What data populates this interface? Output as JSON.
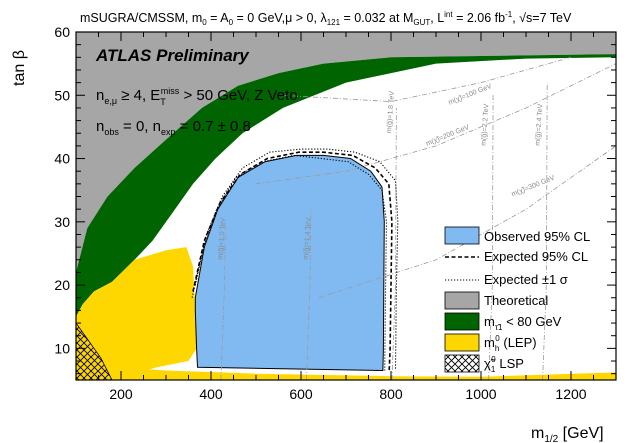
{
  "chart_data": {
    "type": "area",
    "title_parts": {
      "model": "mSUGRA/CMSSM",
      "m0": "m",
      "m0_sub": "0",
      "a0_eq": " = A",
      "a0_sub": "0",
      "params": " = 0 GeV,",
      "mu": "μ > 0,",
      "lambda": "λ",
      "lambda_sub": "121",
      "lambda_val": " = 0.032 at M",
      "gut_sub": "GUT",
      "lumi": ",  L",
      "lumi_sup": "int",
      "lumi_val": " = 2.06 fb",
      "lumi_unit_sup": "-1",
      "sqrt_s": ", √s=7 TeV"
    },
    "badge": "ATLAS Preliminary",
    "selection": {
      "line1_n": "n",
      "line1_sub": "e,μ",
      "line1_cut": " ≥ 4, E",
      "line1_sub2": "T",
      "line1_sup2": "miss",
      "line1_rest": " > 50 GeV, Z Veto",
      "line2_n": "n",
      "line2_sub": "obs",
      "line2_mid": " = 0, n",
      "line2_sub2": "exp",
      "line2_rest": " = 0.7 ± 0.8"
    },
    "xlabel": "m",
    "xlabel_sub": "1/2",
    "xlabel_unit": " [GeV]",
    "ylabel": "tan β",
    "xlim": [
      100,
      1300
    ],
    "ylim": [
      5,
      60
    ],
    "x_ticks": [
      200,
      400,
      600,
      800,
      1000,
      1200
    ],
    "x_tick_labels": [
      "200",
      "400",
      "600",
      "800",
      "1000",
      "1200"
    ],
    "y_ticks": [
      10,
      20,
      30,
      40,
      50,
      60
    ],
    "y_tick_labels": [
      "10",
      "20",
      "30",
      "40",
      "50",
      "60"
    ],
    "regions": {
      "theoretical": [
        [
          100,
          60
        ],
        [
          100,
          22
        ],
        [
          125,
          29
        ],
        [
          170,
          34
        ],
        [
          230,
          38.5
        ],
        [
          300,
          43
        ],
        [
          380,
          48
        ],
        [
          460,
          51.5
        ],
        [
          550,
          53.5
        ],
        [
          650,
          55
        ],
        [
          800,
          56
        ],
        [
          1000,
          56.2
        ],
        [
          1300,
          56.5
        ],
        [
          1300,
          60
        ]
      ],
      "stau": [
        [
          100,
          22
        ],
        [
          125,
          29
        ],
        [
          170,
          34
        ],
        [
          230,
          38.5
        ],
        [
          300,
          43
        ],
        [
          380,
          48
        ],
        [
          460,
          51.5
        ],
        [
          550,
          53.5
        ],
        [
          650,
          55
        ],
        [
          800,
          56
        ],
        [
          1000,
          56.2
        ],
        [
          1300,
          56.5
        ],
        [
          1300,
          56
        ],
        [
          1100,
          55.8
        ],
        [
          900,
          55
        ],
        [
          700,
          52
        ],
        [
          560,
          48
        ],
        [
          470,
          44
        ],
        [
          410,
          40
        ],
        [
          360,
          36
        ],
        [
          320,
          32
        ],
        [
          270,
          27
        ],
        [
          230,
          24
        ],
        [
          180,
          20.5
        ],
        [
          140,
          19
        ],
        [
          115,
          17
        ],
        [
          100,
          15
        ]
      ],
      "lep": [
        [
          100,
          5
        ],
        [
          100,
          15
        ],
        [
          115,
          17
        ],
        [
          140,
          19
        ],
        [
          180,
          20.5
        ],
        [
          230,
          24
        ],
        [
          300,
          25.5
        ],
        [
          345,
          26
        ],
        [
          360,
          23
        ],
        [
          365,
          16
        ],
        [
          368,
          10
        ],
        [
          350,
          8
        ],
        [
          280,
          7
        ],
        [
          200,
          5.5
        ],
        [
          150,
          5
        ]
      ],
      "lep_bottom_band": [
        [
          100,
          5
        ],
        [
          100,
          7.5
        ],
        [
          300,
          6.5
        ],
        [
          500,
          6
        ],
        [
          800,
          5.6
        ],
        [
          1000,
          5.5
        ],
        [
          1300,
          6.2
        ],
        [
          1300,
          5
        ]
      ],
      "lsp": [
        [
          100,
          5
        ],
        [
          100,
          14
        ],
        [
          130,
          11
        ],
        [
          155,
          8.5
        ],
        [
          180,
          5
        ]
      ],
      "observed": [
        [
          365,
          18
        ],
        [
          385,
          26
        ],
        [
          415,
          32
        ],
        [
          460,
          37
        ],
        [
          520,
          39.5
        ],
        [
          590,
          40.5
        ],
        [
          650,
          40.5
        ],
        [
          710,
          40
        ],
        [
          755,
          38
        ],
        [
          780,
          35.5
        ],
        [
          785,
          30
        ],
        [
          784,
          20
        ],
        [
          783,
          10
        ],
        [
          782,
          6.5
        ],
        [
          370,
          7
        ],
        [
          368,
          10
        ],
        [
          365,
          16
        ]
      ]
    },
    "expected": [
      [
        360,
        19
      ],
      [
        385,
        27
      ],
      [
        420,
        33
      ],
      [
        465,
        37.5
      ],
      [
        525,
        40
      ],
      [
        595,
        41
      ],
      [
        650,
        41
      ],
      [
        715,
        40.5
      ],
      [
        765,
        38.5
      ],
      [
        795,
        36
      ],
      [
        802,
        30
      ],
      [
        800,
        20
      ],
      [
        798,
        10
      ],
      [
        796,
        6.5
      ]
    ],
    "expected_plus": [
      [
        365,
        20
      ],
      [
        390,
        28
      ],
      [
        425,
        34
      ],
      [
        470,
        38.5
      ],
      [
        530,
        41
      ],
      [
        600,
        41.5
      ],
      [
        660,
        41.5
      ],
      [
        720,
        41
      ],
      [
        775,
        39.5
      ],
      [
        810,
        36.5
      ],
      [
        815,
        30
      ],
      [
        812,
        20
      ],
      [
        810,
        6.5
      ]
    ],
    "expected_minus": [
      [
        358,
        18
      ],
      [
        383,
        26
      ],
      [
        413,
        32
      ],
      [
        455,
        37
      ],
      [
        515,
        39.5
      ],
      [
        585,
        40.5
      ],
      [
        645,
        40
      ],
      [
        705,
        39.5
      ],
      [
        750,
        37.5
      ],
      [
        780,
        35
      ],
      [
        790,
        30
      ],
      [
        788,
        20
      ],
      [
        786,
        6.5
      ]
    ],
    "mass_contours": {
      "gluino": [
        {
          "label": "m(g̃)=1.0 TeV",
          "x": 430,
          "label_x": 425,
          "label_y": 24
        },
        {
          "label": "m(g̃)=1.4 TeV",
          "x": 620,
          "label_x": 615,
          "label_y": 24
        },
        {
          "label": "m(g̃)=1.8 TeV",
          "x": 810,
          "label_x": 800,
          "label_y": 44
        },
        {
          "label": "m(g̃)=2.2 TeV",
          "x": 1025,
          "label_x": 1010,
          "label_y": 42
        },
        {
          "label": "m(g̃)=2.4 TeV",
          "x": 1145,
          "label_x": 1130,
          "label_y": 42
        }
      ],
      "chargino": [
        {
          "label": "m(χ̃)=100 GeV",
          "label_x": 930,
          "label_y": 48.5
        },
        {
          "label": "m(χ̃)=200 GeV",
          "label_x": 880,
          "label_y": 42
        },
        {
          "label": "m(χ̃)=300 GeV",
          "label_x": 1070,
          "label_y": 34
        }
      ]
    },
    "legend": {
      "placement": "bottom-right",
      "entries": [
        {
          "label": "Observed 95% CL",
          "style": "fill",
          "color": "#80BAF0"
        },
        {
          "label": "Expected 95% CL",
          "style": "dashed"
        },
        {
          "label": "Expected ±1 σ",
          "style": "dotted"
        },
        {
          "label": "Theoretical",
          "style": "fill",
          "color": "#A6A6A6"
        },
        {
          "label_main": "m",
          "label_sub": "τ̃1",
          "label_rest": " < 80 GeV",
          "style": "fill",
          "color": "#006400"
        },
        {
          "label_main": "m",
          "label_sub": "h",
          "label_sup": "0",
          "label_rest": " (LEP)",
          "style": "fill",
          "color": "#FFD700"
        },
        {
          "label_main": "χ̃",
          "label_sub": "1",
          "label_sup": "0",
          "label_rest": " LSP",
          "style": "hatch"
        }
      ]
    },
    "colors": {
      "theoretical": "#A6A6A6",
      "stau": "#006400",
      "lep": "#FFD700",
      "observed": "#80BAF0"
    }
  }
}
